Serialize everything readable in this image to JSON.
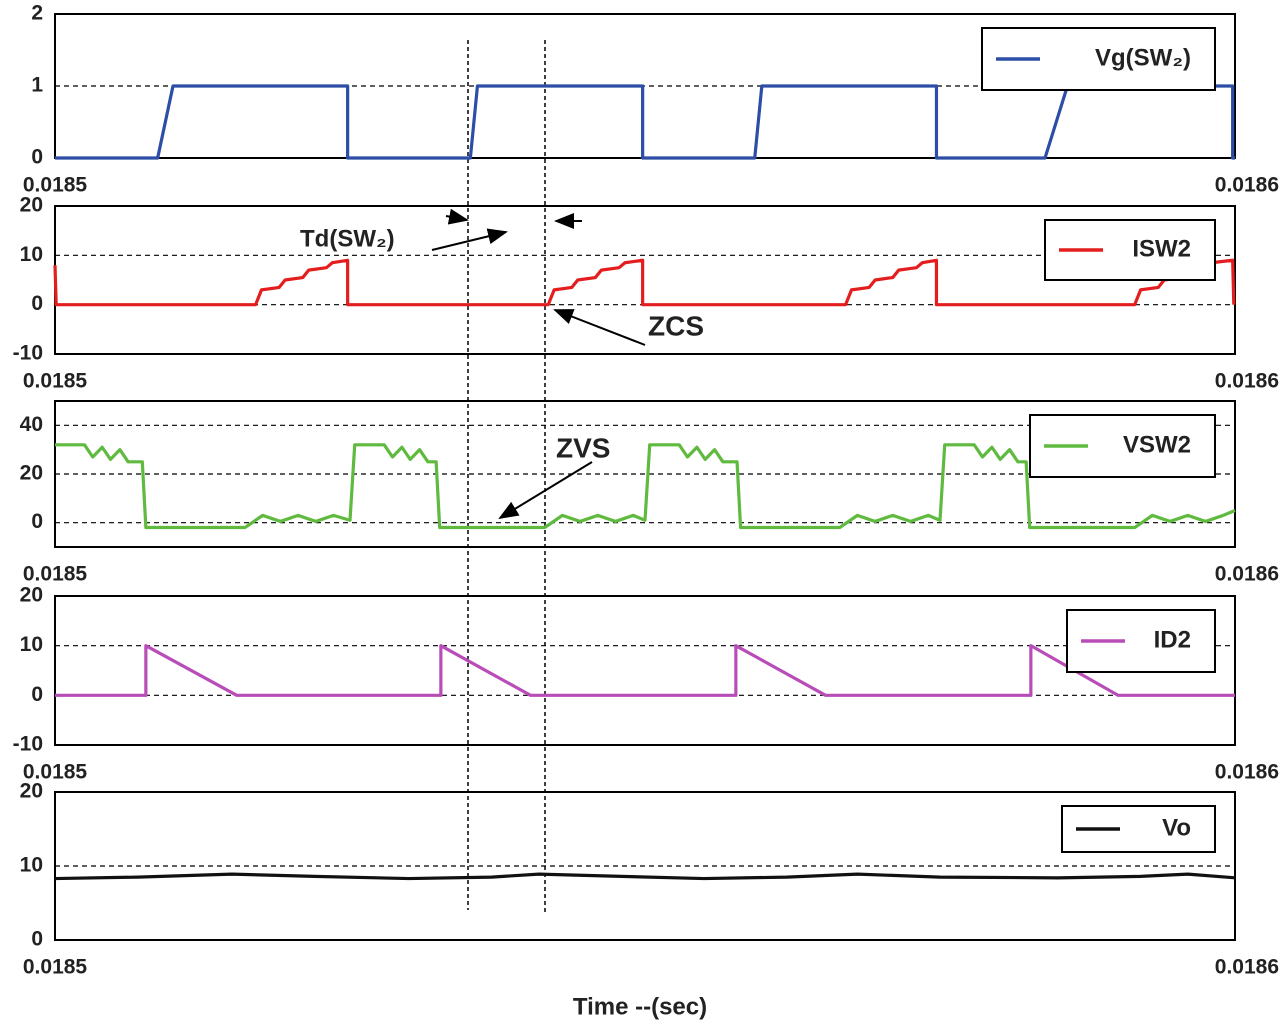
{
  "chart_data": [
    {
      "type": "line",
      "xlim": [
        0.0185,
        0.0186
      ],
      "xticks": [
        0.0185,
        0.0186
      ],
      "ylim": [
        0,
        2
      ],
      "yticks": [
        0,
        1,
        2
      ],
      "grid": true,
      "legend": "upper right",
      "series": [
        {
          "name": "Vg(SW₂)",
          "color": "#2d4ea6",
          "x": [
            0.0185,
            0.0185087,
            0.01851,
            0.0185248,
            0.0185248,
            0.0185352,
            0.0185358,
            0.0185498,
            0.0185498,
            0.0185593,
            0.0185599,
            0.0185747,
            0.0185747,
            0.0185839,
            0.0185858,
            0.0185998,
            0.0185998,
            0.0186
          ],
          "values": [
            0,
            0,
            1,
            1,
            0,
            0,
            1,
            1,
            0,
            0,
            1,
            1,
            0,
            0,
            1,
            1,
            0,
            0
          ]
        }
      ]
    },
    {
      "type": "line",
      "xlim": [
        0.0185,
        0.0186
      ],
      "xticks": [
        0.0185,
        0.0186
      ],
      "ylim": [
        -10,
        20
      ],
      "yticks": [
        -10,
        0,
        10,
        20
      ],
      "grid": true,
      "legend": "upper right",
      "annotations": [
        "Td(SW₂)",
        "ZCS"
      ],
      "series": [
        {
          "name": "ISW2",
          "color": "#e41e1e",
          "x": [
            0.0185,
            0.0185001,
            0.018517,
            0.0185175,
            0.018519,
            0.0185195,
            0.018521,
            0.0185215,
            0.018523,
            0.0185235,
            0.0185248,
            0.0185248,
            0.0185418,
            0.0185423,
            0.0185438,
            0.0185443,
            0.0185458,
            0.0185463,
            0.0185478,
            0.0185483,
            0.0185498,
            0.0185498,
            0.018567,
            0.0185675,
            0.018569,
            0.0185695,
            0.018571,
            0.0185715,
            0.018573,
            0.0185735,
            0.0185747,
            0.0185747,
            0.0185915,
            0.018592,
            0.0185935,
            0.018594,
            0.0185955,
            0.018596,
            0.0185975,
            0.018598,
            0.0185998,
            0.0185999
          ],
          "values": [
            8,
            0,
            0,
            3,
            3.5,
            5,
            5.5,
            7,
            7.5,
            8.5,
            9,
            0,
            0,
            3,
            3.5,
            5,
            5.5,
            7,
            7.5,
            8.5,
            9,
            0,
            0,
            3,
            3.5,
            5,
            5.5,
            7,
            7.5,
            8.5,
            9,
            0,
            0,
            3,
            3.5,
            5,
            5.5,
            7,
            7.5,
            8.5,
            9,
            0
          ]
        }
      ]
    },
    {
      "type": "line",
      "xlim": [
        0.0185,
        0.0186
      ],
      "xticks": [
        0.0185,
        0.0186
      ],
      "ylim": [
        -10,
        50
      ],
      "yticks": [
        0,
        20,
        40
      ],
      "grid": true,
      "legend": "upper right",
      "annotations": [
        "ZVS"
      ],
      "series": [
        {
          "name": "VSW2",
          "color": "#5fba3f",
          "x": [
            0.0185,
            0.0185025,
            0.0185032,
            0.018504,
            0.0185047,
            0.0185055,
            0.0185062,
            0.0185074,
            0.0185077,
            0.0185161,
            0.0185176,
            0.0185191,
            0.0185206,
            0.0185221,
            0.0185236,
            0.018525,
            0.0185254,
            0.0185279,
            0.0185286,
            0.0185294,
            0.0185301,
            0.0185309,
            0.0185316,
            0.0185323,
            0.0185326,
            0.0185415,
            0.018543,
            0.0185445,
            0.018546,
            0.0185475,
            0.018549,
            0.01855,
            0.0185504,
            0.0185529,
            0.0185536,
            0.0185544,
            0.0185551,
            0.0185559,
            0.0185566,
            0.0185578,
            0.0185581,
            0.0185665,
            0.018568,
            0.0185695,
            0.018571,
            0.0185725,
            0.018574,
            0.018575,
            0.0185754,
            0.0185779,
            0.0185786,
            0.0185794,
            0.0185801,
            0.0185809,
            0.0185816,
            0.0185823,
            0.0185826,
            0.0185915,
            0.018593,
            0.0185945,
            0.018596,
            0.0185975,
            0.018599,
            0.0186
          ],
          "values": [
            32,
            32,
            27,
            31,
            26,
            30,
            25,
            25,
            -2,
            -2,
            3,
            0.5,
            3,
            0.5,
            3,
            1,
            32,
            32,
            27,
            31,
            26,
            30,
            25,
            25,
            -2,
            -2,
            3,
            0.5,
            3,
            0.5,
            3,
            1,
            32,
            32,
            27,
            31,
            26,
            30,
            25,
            25,
            -2,
            -2,
            3,
            0.5,
            3,
            0.5,
            3,
            1,
            32,
            32,
            27,
            31,
            26,
            30,
            25,
            25,
            -2,
            -2,
            3,
            0.5,
            3,
            0.5,
            3,
            5
          ]
        }
      ]
    },
    {
      "type": "line",
      "xlim": [
        0.0185,
        0.0186
      ],
      "xticks": [
        0.0185,
        0.0186
      ],
      "ylim": [
        -10,
        20
      ],
      "yticks": [
        -10,
        0,
        10,
        20
      ],
      "grid": true,
      "legend": "upper right",
      "series": [
        {
          "name": "ID2",
          "color": "#b84db8",
          "x": [
            0.0185,
            0.0185077,
            0.0185077,
            0.0185154,
            0.0185327,
            0.0185327,
            0.0185403,
            0.0185577,
            0.0185577,
            0.0185653,
            0.0185827,
            0.0185827,
            0.0185901,
            0.0186
          ],
          "values": [
            0,
            0,
            10,
            0,
            0,
            10,
            0,
            0,
            10,
            0,
            0,
            10,
            0,
            0
          ]
        }
      ]
    },
    {
      "type": "line",
      "xlim": [
        0.0185,
        0.0186
      ],
      "xticks": [
        0.0185,
        0.0186
      ],
      "ylim": [
        0,
        20
      ],
      "yticks": [
        0,
        10,
        20
      ],
      "grid": true,
      "legend": "upper right",
      "xlabel": "Time --(sec)",
      "series": [
        {
          "name": "Vo",
          "color": "#111111",
          "x": [
            0.0185,
            0.018507,
            0.018515,
            0.018522,
            0.01853,
            0.018537,
            0.018541,
            0.018548,
            0.018555,
            0.018562,
            0.018568,
            0.018575,
            0.018585,
            0.018592,
            0.018596,
            0.0186
          ],
          "values": [
            8.3,
            8.5,
            8.9,
            8.6,
            8.3,
            8.5,
            8.9,
            8.6,
            8.3,
            8.5,
            8.9,
            8.5,
            8.4,
            8.6,
            8.9,
            8.4
          ]
        }
      ]
    }
  ]
}
